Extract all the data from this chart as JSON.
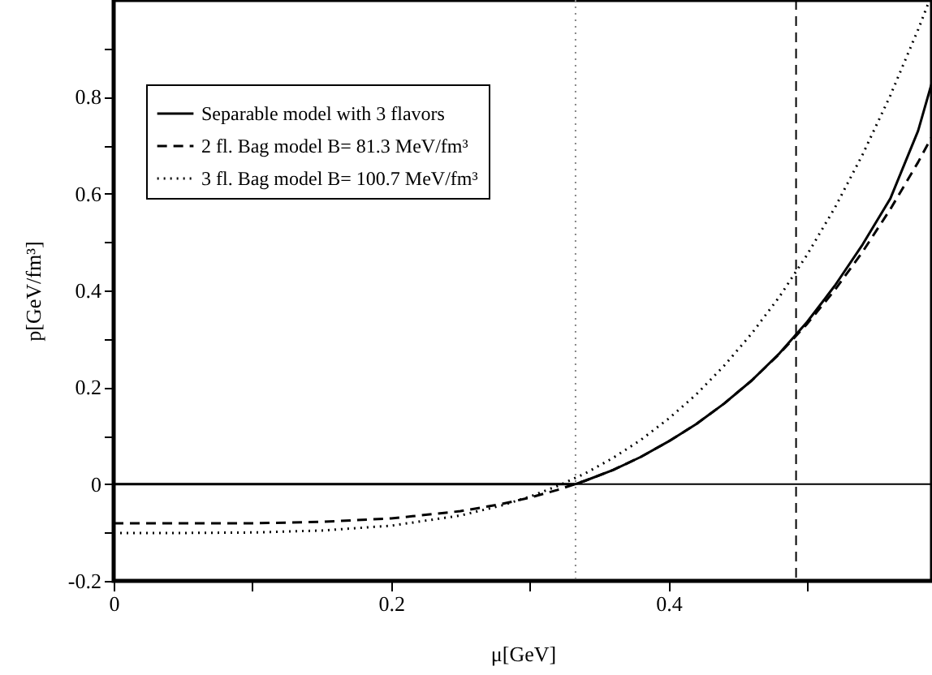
{
  "chart_data": {
    "type": "line",
    "xlabel": "μ[GeV]",
    "ylabel": "p[GeV/fm³]",
    "xlim": [
      0,
      0.59
    ],
    "ylim": [
      -0.2,
      1.0
    ],
    "xticks": [
      0,
      {
        "value": 0.1,
        "label": null
      },
      0.2,
      {
        "value": 0.3,
        "label": null
      },
      0.4,
      {
        "value": 0.5,
        "label": null
      }
    ],
    "yticks": [
      -0.2,
      {
        "value": -0.1,
        "label": null
      },
      0,
      {
        "value": 0.1,
        "label": null
      },
      0.2,
      {
        "value": 0.3,
        "label": null
      },
      0.4,
      {
        "value": 0.5,
        "label": null
      },
      0.6,
      {
        "value": 0.7,
        "label": null
      },
      0.8,
      {
        "value": 0.9,
        "label": null
      }
    ],
    "grid": false,
    "legend": "top left",
    "marker": "none",
    "series": [
      {
        "name": "Separable model with 3 flavors",
        "color": "#000000",
        "line_style": "solid",
        "x": [
          0,
          0.1,
          0.2,
          0.3,
          0.333,
          0.34,
          0.36,
          0.38,
          0.4,
          0.42,
          0.44,
          0.46,
          0.48,
          0.5,
          0.52,
          0.54,
          0.56,
          0.58,
          0.59
        ],
        "values": [
          0,
          0,
          0,
          0,
          0,
          0.007,
          0.029,
          0.056,
          0.088,
          0.124,
          0.166,
          0.214,
          0.27,
          0.335,
          0.41,
          0.495,
          0.59,
          0.73,
          0.83
        ]
      },
      {
        "name": "2 fl. Bag model B= 81.3 MeV/fm³",
        "color": "#000000",
        "line_style": "dashed",
        "x": [
          0,
          0.05,
          0.1,
          0.15,
          0.2,
          0.25,
          0.28,
          0.3,
          0.32,
          0.34,
          0.36,
          0.38,
          0.4,
          0.42,
          0.44,
          0.46,
          0.48,
          0.5,
          0.52,
          0.54,
          0.56,
          0.58,
          0.59
        ],
        "values": [
          -0.081,
          -0.081,
          -0.081,
          -0.078,
          -0.071,
          -0.056,
          -0.041,
          -0.028,
          -0.012,
          0.007,
          0.029,
          0.056,
          0.088,
          0.124,
          0.166,
          0.214,
          0.269,
          0.331,
          0.401,
          0.48,
          0.568,
          0.665,
          0.718
        ]
      },
      {
        "name": "3 fl. Bag model B= 100.7 MeV/fm³",
        "color": "#000000",
        "line_style": "dotted",
        "x": [
          0,
          0.05,
          0.1,
          0.15,
          0.2,
          0.25,
          0.28,
          0.3,
          0.32,
          0.34,
          0.36,
          0.38,
          0.4,
          0.42,
          0.44,
          0.46,
          0.48,
          0.5,
          0.52,
          0.54,
          0.56,
          0.58,
          0.588
        ],
        "values": [
          -0.101,
          -0.101,
          -0.1,
          -0.096,
          -0.086,
          -0.065,
          -0.044,
          -0.026,
          -0.004,
          0.022,
          0.054,
          0.091,
          0.135,
          0.185,
          0.244,
          0.311,
          0.387,
          0.474,
          0.571,
          0.681,
          0.803,
          0.939,
          0.998
        ]
      }
    ],
    "ref_lines": [
      {
        "axis": "y",
        "value": 0,
        "color": "#000000",
        "line_style": "solid"
      },
      {
        "axis": "x",
        "value": 0.333,
        "color": "#888888",
        "line_style": "dotted"
      },
      {
        "axis": "x",
        "value": 0.492,
        "color": "#000000",
        "line_style": "dashed"
      }
    ]
  }
}
